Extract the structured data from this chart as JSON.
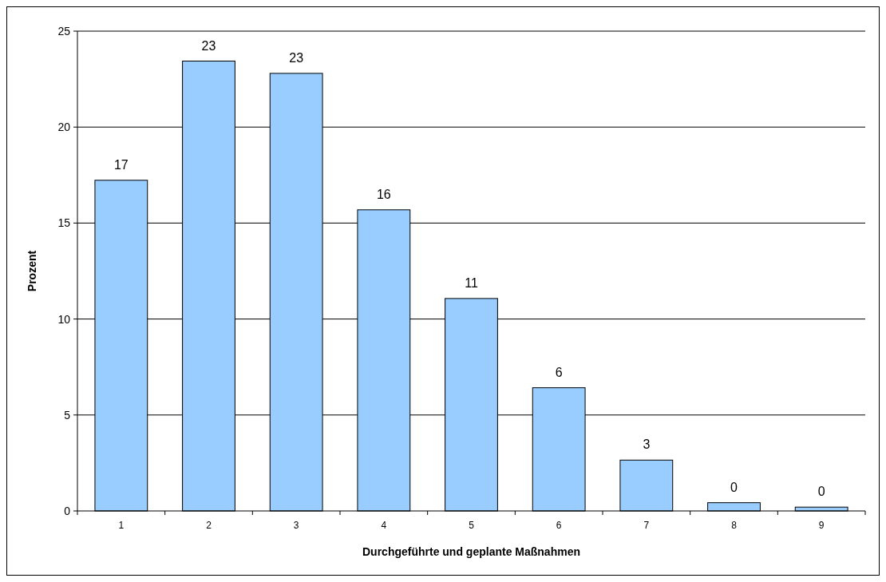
{
  "chart_data": {
    "type": "bar",
    "xlabel": "Durchgeführte und geplante Maßnahmen",
    "ylabel": "Prozent",
    "categories": [
      "1",
      "2",
      "3",
      "4",
      "5",
      "6",
      "7",
      "8",
      "9"
    ],
    "values": [
      17.23,
      23.44,
      22.8,
      15.69,
      11.07,
      6.42,
      2.65,
      0.43,
      0.2
    ],
    "value_labels": [
      "17",
      "23",
      "23",
      "16",
      "11",
      "6",
      "3",
      "0",
      "0"
    ],
    "color": "#99ccff",
    "ylim": [
      0,
      25
    ],
    "yticks": [
      0,
      5,
      10,
      15,
      20,
      25
    ],
    "grid": "y"
  }
}
